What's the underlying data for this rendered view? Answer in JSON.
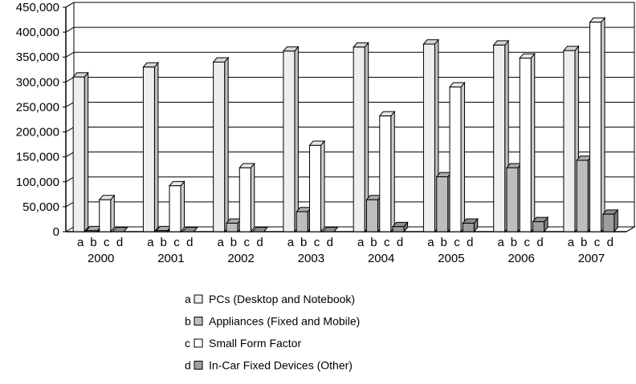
{
  "chart_data": {
    "type": "bar",
    "categories": [
      "2000",
      "2001",
      "2002",
      "2003",
      "2004",
      "2005",
      "2006",
      "2007"
    ],
    "sub_labels": [
      "a",
      "b",
      "c",
      "d"
    ],
    "series": [
      {
        "key": "a",
        "name": "PCs (Desktop and Notebook)",
        "color": "#eeeeee",
        "values": [
          310000,
          330000,
          340000,
          362000,
          370000,
          376000,
          374000,
          363000
        ]
      },
      {
        "key": "b",
        "name": "Appliances (Fixed and Mobile)",
        "color": "#bdbdbd",
        "values": [
          2000,
          2000,
          17000,
          40000,
          64000,
          110000,
          128000,
          143000
        ]
      },
      {
        "key": "c",
        "name": "Small Form Factor",
        "color": "#ffffff",
        "values": [
          64000,
          92000,
          128000,
          173000,
          232000,
          290000,
          348000,
          420000
        ]
      },
      {
        "key": "d",
        "name": "In-Car Fixed Devices (Other)",
        "color": "#9e9e9e",
        "values": [
          0,
          0,
          0,
          0,
          10000,
          17000,
          20000,
          35000
        ]
      }
    ],
    "yticks": [
      "0",
      "50,000",
      "100,000",
      "150,000",
      "200,000",
      "250,000",
      "300,000",
      "350,000",
      "400,000",
      "450,000"
    ],
    "ylim": [
      0,
      450000
    ],
    "grid": true,
    "legend_position": "bottom"
  }
}
